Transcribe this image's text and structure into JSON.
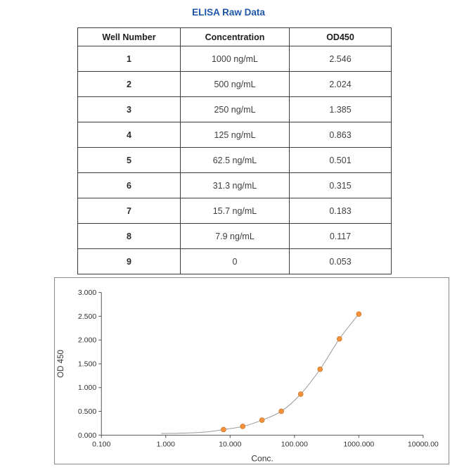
{
  "title": "ELISA Raw Data",
  "title_color": "#1e56a8",
  "table": {
    "headers": [
      "Well Number",
      "Concentration",
      "OD450"
    ],
    "rows": [
      [
        "1",
        "1000 ng/mL",
        "2.546"
      ],
      [
        "2",
        "500 ng/mL",
        "2.024"
      ],
      [
        "3",
        "250 ng/mL",
        "1.385"
      ],
      [
        "4",
        "125 ng/mL",
        "0.863"
      ],
      [
        "5",
        "62.5 ng/mL",
        "0.501"
      ],
      [
        "6",
        "31.3 ng/mL",
        "0.315"
      ],
      [
        "7",
        "15.7 ng/mL",
        "0.183"
      ],
      [
        "8",
        "7.9 ng/mL",
        "0.117"
      ],
      [
        "9",
        "0",
        "0.053"
      ]
    ]
  },
  "chart_data": {
    "type": "scatter",
    "x": [
      7.9,
      15.7,
      31.3,
      62.5,
      125,
      250,
      500,
      1000
    ],
    "y": [
      0.117,
      0.183,
      0.315,
      0.501,
      0.863,
      1.385,
      2.024,
      2.546
    ],
    "xlabel": "Conc.",
    "ylabel": "OD 450",
    "x_scale": "log",
    "xlim": [
      0.1,
      10000
    ],
    "ylim": [
      0,
      3
    ],
    "x_ticks": [
      {
        "v": 0.1,
        "label": "0.100"
      },
      {
        "v": 1,
        "label": "1.000"
      },
      {
        "v": 10,
        "label": "10.000"
      },
      {
        "v": 100,
        "label": "100.000"
      },
      {
        "v": 1000,
        "label": "1000.000"
      },
      {
        "v": 10000,
        "label": "10000.00"
      }
    ],
    "y_ticks": [
      {
        "v": 0.0,
        "label": "0.000"
      },
      {
        "v": 0.5,
        "label": "0.500"
      },
      {
        "v": 1.0,
        "label": "1.000"
      },
      {
        "v": 1.5,
        "label": "1.500"
      },
      {
        "v": 2.0,
        "label": "2.000"
      },
      {
        "v": 2.5,
        "label": "2.500"
      },
      {
        "v": 3.0,
        "label": "3.000"
      }
    ],
    "fit_tail": [
      [
        0.85,
        0.035
      ],
      [
        2.2,
        0.045
      ],
      [
        4.5,
        0.07
      ]
    ],
    "point_color": "#f5913e",
    "point_edge_color": "#cc7722",
    "line_color": "#9a9a9a",
    "grid": false,
    "legend": "none"
  }
}
